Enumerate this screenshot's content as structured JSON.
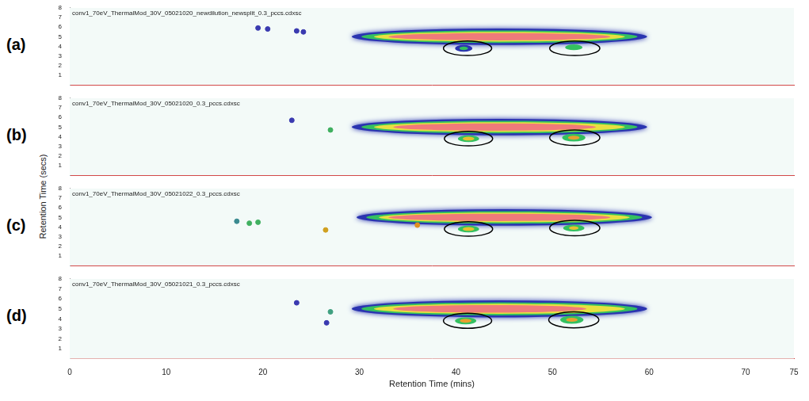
{
  "chart_data": {
    "type": "heatmap",
    "xlabel": "Retention Time (mins)",
    "ylabel": "Retention Time (secs)",
    "xlim": [
      0,
      75
    ],
    "xticks": [
      0,
      10,
      20,
      30,
      40,
      50,
      60,
      70,
      75
    ],
    "ylim": [
      0,
      8
    ],
    "yticks": [
      1,
      2,
      3,
      4,
      5,
      6,
      7,
      8
    ],
    "grid": false,
    "panels": [
      {
        "label": "(a)",
        "title": "conv1_70eV_ThermalMod_30V_05021020_newdilution_newsplit_0.3_pccs.cdxsc",
        "tick_labels": "y",
        "blobs": [
          {
            "x": 44.5,
            "y": 5.0,
            "rx": 15.3,
            "ry": 0.85,
            "color": "#2a34b0"
          },
          {
            "x": 44.5,
            "y": 5.0,
            "rx": 14.3,
            "ry": 0.65,
            "color": "#34c060"
          },
          {
            "x": 44.5,
            "y": 5.0,
            "rx": 13.0,
            "ry": 0.5,
            "color": "#e8e040"
          },
          {
            "x": 44.5,
            "y": 5.0,
            "rx": 11.5,
            "ry": 0.38,
            "color": "#f07a7a"
          },
          {
            "x": 40.8,
            "y": 3.8,
            "rx": 0.9,
            "ry": 0.35,
            "color": "#2a34b0"
          },
          {
            "x": 40.8,
            "y": 3.8,
            "rx": 0.45,
            "ry": 0.18,
            "color": "#34c060"
          },
          {
            "x": 52.2,
            "y": 3.9,
            "rx": 0.9,
            "ry": 0.3,
            "color": "#34c060"
          }
        ],
        "circles": [
          {
            "x": 41.2,
            "y": 3.8,
            "rx": 2.5,
            "ry": 0.75
          },
          {
            "x": 52.3,
            "y": 3.8,
            "rx": 2.6,
            "ry": 0.75
          }
        ],
        "spots": [
          {
            "x": 19.5,
            "y": 5.9,
            "color": "#3a3ab0"
          },
          {
            "x": 20.5,
            "y": 5.8,
            "color": "#3a3ab0"
          },
          {
            "x": 23.5,
            "y": 5.6,
            "color": "#3a3ab0"
          },
          {
            "x": 24.2,
            "y": 5.5,
            "color": "#3a3ab0"
          }
        ]
      },
      {
        "label": "(b)",
        "title": "conv1_70eV_ThermalMod_30V_05021020_0.3_pccs.cdxsc",
        "tick_labels": "y",
        "blobs": [
          {
            "x": 44.5,
            "y": 5.0,
            "rx": 15.3,
            "ry": 0.85,
            "color": "#2a34b0"
          },
          {
            "x": 44.5,
            "y": 5.0,
            "rx": 14.3,
            "ry": 0.65,
            "color": "#34c060"
          },
          {
            "x": 44.5,
            "y": 5.0,
            "rx": 13.0,
            "ry": 0.5,
            "color": "#e8e040"
          },
          {
            "x": 44.0,
            "y": 5.0,
            "rx": 10.5,
            "ry": 0.38,
            "color": "#f07a7a"
          },
          {
            "x": 41.3,
            "y": 3.8,
            "rx": 1.1,
            "ry": 0.35,
            "color": "#34c060"
          },
          {
            "x": 41.3,
            "y": 3.8,
            "rx": 0.6,
            "ry": 0.2,
            "color": "#e8c030"
          },
          {
            "x": 52.2,
            "y": 3.9,
            "rx": 1.2,
            "ry": 0.4,
            "color": "#34c060"
          },
          {
            "x": 52.2,
            "y": 3.9,
            "rx": 0.6,
            "ry": 0.2,
            "color": "#e8a030"
          }
        ],
        "circles": [
          {
            "x": 41.3,
            "y": 3.8,
            "rx": 2.5,
            "ry": 0.75
          },
          {
            "x": 52.3,
            "y": 3.9,
            "rx": 2.6,
            "ry": 0.8
          }
        ],
        "spots": [
          {
            "x": 23.0,
            "y": 5.7,
            "color": "#3a3ab0"
          },
          {
            "x": 27.0,
            "y": 4.7,
            "color": "#40b060"
          }
        ]
      },
      {
        "label": "(c)",
        "title": "conv1_70eV_ThermalMod_30V_05021022_0.3_pccs.cdxsc",
        "tick_labels": "y",
        "blobs": [
          {
            "x": 45.0,
            "y": 5.0,
            "rx": 15.3,
            "ry": 0.85,
            "color": "#2a34b0"
          },
          {
            "x": 45.0,
            "y": 5.0,
            "rx": 14.3,
            "ry": 0.65,
            "color": "#34c060"
          },
          {
            "x": 45.0,
            "y": 5.0,
            "rx": 13.0,
            "ry": 0.5,
            "color": "#e8e040"
          },
          {
            "x": 44.5,
            "y": 5.0,
            "rx": 11.5,
            "ry": 0.38,
            "color": "#f07a7a"
          },
          {
            "x": 41.3,
            "y": 3.8,
            "rx": 1.1,
            "ry": 0.35,
            "color": "#34c060"
          },
          {
            "x": 41.3,
            "y": 3.8,
            "rx": 0.6,
            "ry": 0.2,
            "color": "#e8c030"
          },
          {
            "x": 52.2,
            "y": 3.9,
            "rx": 1.1,
            "ry": 0.35,
            "color": "#34c060"
          },
          {
            "x": 52.2,
            "y": 3.9,
            "rx": 0.5,
            "ry": 0.18,
            "color": "#e8c030"
          }
        ],
        "circles": [
          {
            "x": 41.3,
            "y": 3.8,
            "rx": 2.5,
            "ry": 0.75
          },
          {
            "x": 52.3,
            "y": 3.9,
            "rx": 2.6,
            "ry": 0.8
          }
        ],
        "spots": [
          {
            "x": 17.3,
            "y": 4.6,
            "color": "#3a8a90"
          },
          {
            "x": 18.6,
            "y": 4.4,
            "color": "#40b060"
          },
          {
            "x": 19.5,
            "y": 4.5,
            "color": "#40b060"
          },
          {
            "x": 26.5,
            "y": 3.7,
            "color": "#d0a020"
          },
          {
            "x": 36.0,
            "y": 4.2,
            "color": "#e09020"
          }
        ]
      },
      {
        "label": "(d)",
        "title": "conv1_70eV_ThermalMod_30V_05021021_0.3_pccs.cdxsc",
        "blobs": [
          {
            "x": 44.5,
            "y": 5.0,
            "rx": 15.3,
            "ry": 0.85,
            "color": "#2a34b0"
          },
          {
            "x": 44.5,
            "y": 5.0,
            "rx": 14.3,
            "ry": 0.65,
            "color": "#34c060"
          },
          {
            "x": 44.5,
            "y": 5.0,
            "rx": 13.0,
            "ry": 0.5,
            "color": "#e8e040"
          },
          {
            "x": 43.5,
            "y": 5.0,
            "rx": 10.0,
            "ry": 0.38,
            "color": "#f07a7a"
          },
          {
            "x": 41.0,
            "y": 3.8,
            "rx": 1.1,
            "ry": 0.35,
            "color": "#34c060"
          },
          {
            "x": 41.0,
            "y": 3.8,
            "rx": 0.6,
            "ry": 0.2,
            "color": "#e8a030"
          },
          {
            "x": 52.0,
            "y": 3.9,
            "rx": 1.2,
            "ry": 0.4,
            "color": "#34c060"
          },
          {
            "x": 52.0,
            "y": 3.9,
            "rx": 0.6,
            "ry": 0.2,
            "color": "#e8a030"
          }
        ],
        "circles": [
          {
            "x": 41.2,
            "y": 3.8,
            "rx": 2.5,
            "ry": 0.75
          },
          {
            "x": 52.2,
            "y": 3.9,
            "rx": 2.6,
            "ry": 0.8
          }
        ],
        "spots": [
          {
            "x": 23.5,
            "y": 5.6,
            "color": "#3a3ab0"
          },
          {
            "x": 26.6,
            "y": 3.6,
            "color": "#3a3ab0"
          },
          {
            "x": 27.0,
            "y": 4.7,
            "color": "#40a080"
          }
        ]
      }
    ]
  }
}
